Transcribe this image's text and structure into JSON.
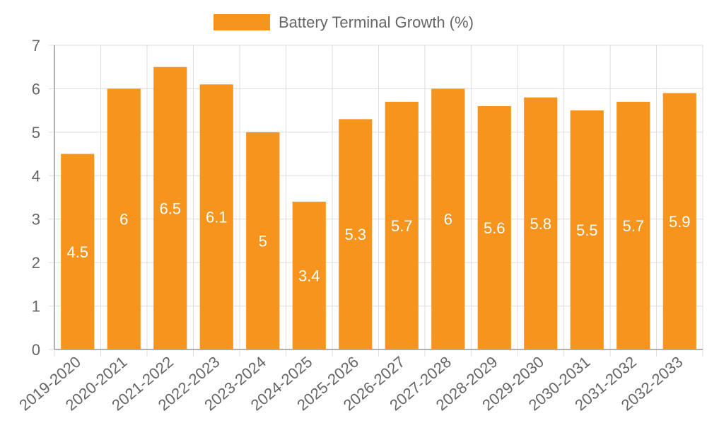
{
  "chart_data": {
    "type": "bar",
    "title": "",
    "legend": {
      "label": "Battery Terminal Growth (%)",
      "position": "top"
    },
    "categories": [
      "2019-2020",
      "2020-2021",
      "2021-2022",
      "2022-2023",
      "2023-2024",
      "2024-2025",
      "2025-2026",
      "2026-2027",
      "2027-2028",
      "2028-2029",
      "2029-2030",
      "2030-2031",
      "2031-2032",
      "2032-2033"
    ],
    "series": [
      {
        "name": "Battery Terminal Growth (%)",
        "values": [
          4.5,
          6,
          6.5,
          6.1,
          5,
          3.4,
          5.3,
          5.7,
          6,
          5.6,
          5.8,
          5.5,
          5.7,
          5.9
        ]
      }
    ],
    "data_labels": [
      "4.5",
      "6",
      "6.5",
      "6.1",
      "5",
      "3.4",
      "5.3",
      "5.7",
      "6",
      "5.6",
      "5.8",
      "5.5",
      "5.7",
      "5.9"
    ],
    "y_ticks": [
      "0",
      "1",
      "2",
      "3",
      "4",
      "5",
      "6",
      "7"
    ],
    "ylim": [
      0,
      7
    ],
    "xlabel": "",
    "ylabel": "",
    "grid": true,
    "colors": {
      "bar": "#f7941d",
      "grid": "#dddddd",
      "axis": "#999999",
      "tick_text": "#666666",
      "label_text": "#ffffff"
    }
  }
}
